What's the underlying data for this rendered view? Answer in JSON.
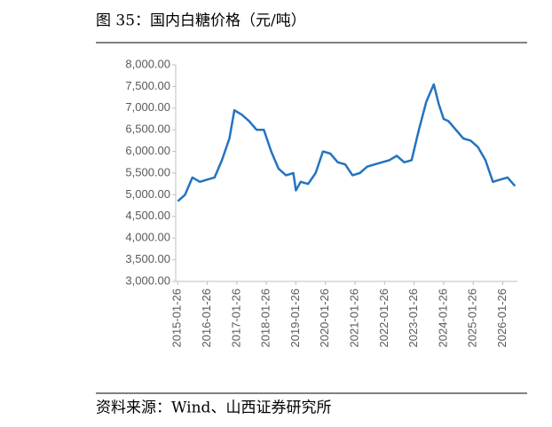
{
  "chart_data": {
    "type": "line",
    "title": "图 35：国内白糖价格（元/吨）",
    "source": "资料来源：Wind、山西证券研究所",
    "x": [
      "2015-01-26",
      "2015-04-26",
      "2015-07-26",
      "2015-10-26",
      "2016-01-26",
      "2016-04-26",
      "2016-07-26",
      "2016-10-26",
      "2016-12-26",
      "2017-03-26",
      "2017-06-26",
      "2017-09-26",
      "2017-12-26",
      "2018-03-26",
      "2018-06-26",
      "2018-09-26",
      "2018-12-26",
      "2019-01-26",
      "2019-03-26",
      "2019-06-26",
      "2019-09-26",
      "2019-12-26",
      "2020-03-26",
      "2020-06-26",
      "2020-09-26",
      "2020-12-26",
      "2021-03-26",
      "2021-06-26",
      "2021-09-26",
      "2021-12-26",
      "2022-03-26",
      "2022-06-26",
      "2022-09-26",
      "2022-12-26",
      "2023-03-26",
      "2023-06-26",
      "2023-09-26",
      "2023-11-26",
      "2024-01-26",
      "2024-03-26",
      "2024-06-26",
      "2024-09-26",
      "2024-12-26",
      "2025-03-26",
      "2025-06-26",
      "2025-09-26",
      "2025-12-26",
      "2026-03-26",
      "2026-06-26"
    ],
    "series": [
      {
        "color": "#2473c0",
        "values": [
          4850,
          5000,
          5400,
          5300,
          5350,
          5400,
          5800,
          6300,
          6950,
          6850,
          6700,
          6500,
          6500,
          6000,
          5600,
          5450,
          5500,
          5100,
          5300,
          5250,
          5500,
          6000,
          5950,
          5750,
          5700,
          5450,
          5500,
          5650,
          5700,
          5750,
          5800,
          5900,
          5750,
          5800,
          6500,
          7150,
          7550,
          7100,
          6750,
          6700,
          6500,
          6300,
          6250,
          6100,
          5800,
          5300,
          5350,
          5400,
          5200
        ]
      }
    ],
    "xlim": [
      "2015-01-01",
      "2026-07-26"
    ],
    "xticks": [
      "2015-01-26",
      "2016-01-26",
      "2017-01-26",
      "2018-01-26",
      "2019-01-26",
      "2020-01-26",
      "2021-01-26",
      "2022-01-26",
      "2023-01-26",
      "2024-01-26",
      "2025-01-26",
      "2026-01-26"
    ],
    "ylim": [
      3000,
      8000
    ],
    "yticks": [
      {
        "value": 3000,
        "label": "3,000.00"
      },
      {
        "value": 3500,
        "label": "3,500.00"
      },
      {
        "value": 4000,
        "label": "4,000.00"
      },
      {
        "value": 4500,
        "label": "4,500.00"
      },
      {
        "value": 5000,
        "label": "5,000.00"
      },
      {
        "value": 5500,
        "label": "5,500.00"
      },
      {
        "value": 6000,
        "label": "6,000.00"
      },
      {
        "value": 6500,
        "label": "6,500.00"
      },
      {
        "value": 7000,
        "label": "7,000.00"
      },
      {
        "value": 7500,
        "label": "7,500.00"
      },
      {
        "value": 8000,
        "label": "8,000.00"
      }
    ],
    "grid": false
  }
}
